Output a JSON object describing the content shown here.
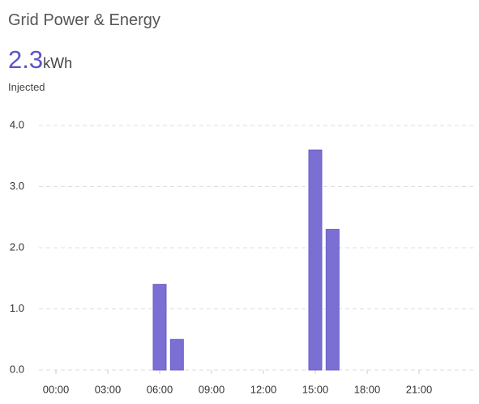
{
  "header": {
    "title": "Grid Power & Energy",
    "value": 2.3,
    "unit": "kWh",
    "label": "Injected"
  },
  "chart_data": {
    "type": "bar",
    "categories": [
      "00:00",
      null,
      null,
      "03:00",
      null,
      null,
      "06:00",
      null,
      null,
      "09:00",
      null,
      null,
      "12:00",
      null,
      null,
      "15:00",
      null,
      null,
      "18:00",
      null,
      null,
      "21:00",
      null,
      null
    ],
    "values": [
      0,
      0,
      0,
      0,
      0,
      0,
      1.4,
      0.5,
      0,
      0,
      0,
      0,
      0,
      0,
      0,
      3.6,
      2.3,
      0,
      0,
      0,
      0,
      0,
      0,
      0
    ],
    "color": "#7b6fd4",
    "ylim": [
      0,
      4
    ],
    "yticks": [
      {
        "value": 0,
        "label": "0.0"
      },
      {
        "value": 1,
        "label": "1.0"
      },
      {
        "value": 2,
        "label": "2.0"
      },
      {
        "value": 3,
        "label": "3.0"
      },
      {
        "value": 4,
        "label": "4.0"
      }
    ],
    "grid": true
  }
}
